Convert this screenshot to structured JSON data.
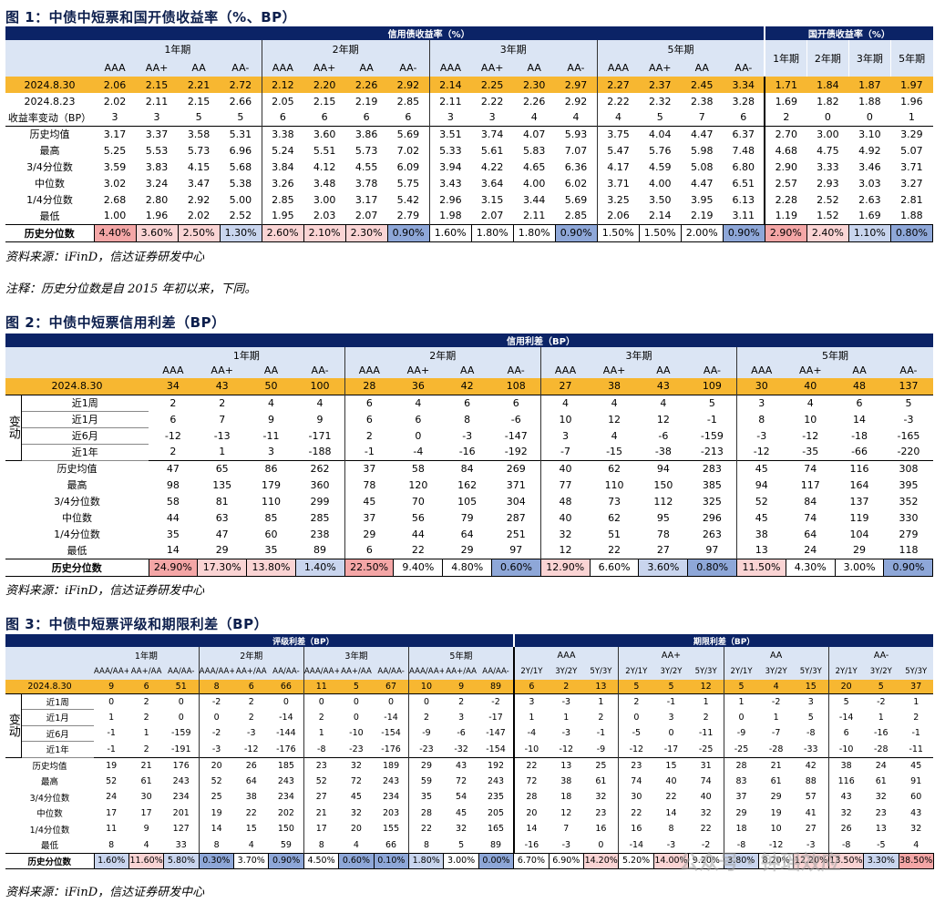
{
  "fig1": {
    "title": "图 1：中债中短票和国开债收益率（%、BP）",
    "group_credit": "信用债收益率（%）",
    "group_cdb": "国开债收益率（%）",
    "terms": [
      "1年期",
      "2年期",
      "3年期",
      "5年期"
    ],
    "ratings": [
      "AAA",
      "AA+",
      "AA",
      "AA-"
    ],
    "cdb_terms": [
      "1年期",
      "2年期",
      "3年期",
      "5年期"
    ],
    "rows": [
      {
        "label": "2024.8.30",
        "vals": [
          "2.06",
          "2.15",
          "2.21",
          "2.72",
          "2.12",
          "2.20",
          "2.26",
          "2.92",
          "2.14",
          "2.25",
          "2.30",
          "2.97",
          "2.27",
          "2.37",
          "2.45",
          "3.34",
          "1.71",
          "1.84",
          "1.87",
          "1.97"
        ]
      },
      {
        "label": "2024.8.23",
        "vals": [
          "2.02",
          "2.11",
          "2.15",
          "2.66",
          "2.05",
          "2.15",
          "2.19",
          "2.85",
          "2.11",
          "2.22",
          "2.26",
          "2.92",
          "2.22",
          "2.32",
          "2.38",
          "3.28",
          "1.69",
          "1.82",
          "1.88",
          "1.96"
        ]
      },
      {
        "label": "收益率变动（BP）",
        "vals": [
          "3",
          "3",
          "5",
          "5",
          "6",
          "6",
          "6",
          "6",
          "3",
          "3",
          "4",
          "4",
          "4",
          "5",
          "7",
          "6",
          "2",
          "0",
          "0",
          "1"
        ]
      },
      {
        "label": "历史均值",
        "vals": [
          "3.17",
          "3.37",
          "3.58",
          "5.31",
          "3.38",
          "3.60",
          "3.86",
          "5.69",
          "3.51",
          "3.74",
          "4.07",
          "5.93",
          "3.75",
          "4.04",
          "4.47",
          "6.37",
          "2.70",
          "3.00",
          "3.10",
          "3.29"
        ]
      },
      {
        "label": "最高",
        "vals": [
          "5.25",
          "5.53",
          "5.73",
          "6.96",
          "5.24",
          "5.51",
          "5.73",
          "7.02",
          "5.33",
          "5.61",
          "5.83",
          "7.07",
          "5.47",
          "5.76",
          "5.98",
          "7.48",
          "4.68",
          "4.75",
          "4.92",
          "5.07"
        ]
      },
      {
        "label": "3/4分位数",
        "vals": [
          "3.59",
          "3.83",
          "4.15",
          "5.68",
          "3.84",
          "4.12",
          "4.55",
          "6.09",
          "3.94",
          "4.22",
          "4.65",
          "6.36",
          "4.17",
          "4.59",
          "5.08",
          "6.80",
          "2.90",
          "3.33",
          "3.46",
          "3.71"
        ]
      },
      {
        "label": "中位数",
        "vals": [
          "3.02",
          "3.24",
          "3.47",
          "5.38",
          "3.26",
          "3.48",
          "3.78",
          "5.75",
          "3.43",
          "3.64",
          "4.00",
          "6.02",
          "3.71",
          "4.00",
          "4.47",
          "6.51",
          "2.57",
          "2.93",
          "3.03",
          "3.27"
        ]
      },
      {
        "label": "1/4分位数",
        "vals": [
          "2.68",
          "2.80",
          "2.92",
          "5.00",
          "2.85",
          "3.00",
          "3.17",
          "5.42",
          "2.96",
          "3.15",
          "3.44",
          "5.69",
          "3.25",
          "3.50",
          "3.95",
          "6.13",
          "2.28",
          "2.52",
          "2.63",
          "2.81"
        ]
      },
      {
        "label": "最低",
        "vals": [
          "1.00",
          "1.96",
          "2.02",
          "2.52",
          "1.95",
          "2.03",
          "2.07",
          "2.79",
          "1.98",
          "2.07",
          "2.11",
          "2.85",
          "2.06",
          "2.14",
          "2.19",
          "3.11",
          "1.19",
          "1.52",
          "1.69",
          "1.88"
        ]
      }
    ],
    "pct_label": "历史分位数",
    "pct": [
      "4.40%",
      "3.60%",
      "2.50%",
      "1.30%",
      "2.60%",
      "2.10%",
      "2.30%",
      "0.90%",
      "1.60%",
      "1.80%",
      "1.80%",
      "0.90%",
      "1.50%",
      "1.50%",
      "2.00%",
      "0.90%",
      "2.90%",
      "2.40%",
      "1.10%",
      "0.80%"
    ],
    "pct_colors": [
      "hot",
      "warm",
      "warm",
      "cool",
      "warm",
      "warm",
      "warm",
      "cold",
      "none",
      "none",
      "none",
      "cold",
      "none",
      "none",
      "none",
      "cold",
      "hot",
      "warm",
      "cool",
      "cold"
    ],
    "source": "资料来源：iFinD，信达证券研发中心"
  },
  "note": "注释：历史分位数是自 2015 年初以来，下同。",
  "fig2": {
    "title": "图 2：中债中短票信用利差（BP）",
    "group": "信用利差（BP）",
    "terms": [
      "1年期",
      "2年期",
      "3年期",
      "5年期"
    ],
    "ratings": [
      "AAA",
      "AA+",
      "AA",
      "AA-"
    ],
    "date_row": {
      "label": "2024.8.30",
      "vals": [
        "34",
        "43",
        "50",
        "100",
        "28",
        "36",
        "42",
        "108",
        "27",
        "38",
        "43",
        "109",
        "30",
        "40",
        "48",
        "137"
      ]
    },
    "change_label": "变动",
    "change_rows": [
      {
        "label": "近1周",
        "vals": [
          "2",
          "2",
          "4",
          "4",
          "6",
          "4",
          "6",
          "6",
          "4",
          "4",
          "4",
          "5",
          "3",
          "4",
          "6",
          "5"
        ]
      },
      {
        "label": "近1月",
        "vals": [
          "6",
          "7",
          "9",
          "9",
          "6",
          "6",
          "8",
          "-6",
          "10",
          "12",
          "12",
          "-1",
          "8",
          "10",
          "14",
          "-3"
        ]
      },
      {
        "label": "近6月",
        "vals": [
          "-12",
          "-13",
          "-11",
          "-171",
          "2",
          "0",
          "-3",
          "-147",
          "3",
          "4",
          "-6",
          "-159",
          "-3",
          "-12",
          "-18",
          "-165"
        ]
      },
      {
        "label": "近1年",
        "vals": [
          "2",
          "1",
          "3",
          "-188",
          "-1",
          "-4",
          "-16",
          "-192",
          "-7",
          "-15",
          "-38",
          "-213",
          "-12",
          "-35",
          "-66",
          "-220"
        ]
      }
    ],
    "stat_rows": [
      {
        "label": "历史均值",
        "vals": [
          "47",
          "65",
          "86",
          "262",
          "37",
          "58",
          "84",
          "269",
          "40",
          "62",
          "94",
          "283",
          "45",
          "74",
          "116",
          "308"
        ]
      },
      {
        "label": "最高",
        "vals": [
          "98",
          "135",
          "179",
          "360",
          "78",
          "120",
          "162",
          "371",
          "77",
          "110",
          "150",
          "385",
          "94",
          "117",
          "164",
          "395"
        ]
      },
      {
        "label": "3/4分位数",
        "vals": [
          "58",
          "81",
          "110",
          "299",
          "45",
          "70",
          "105",
          "304",
          "48",
          "73",
          "112",
          "325",
          "52",
          "84",
          "137",
          "352"
        ]
      },
      {
        "label": "中位数",
        "vals": [
          "44",
          "63",
          "85",
          "285",
          "37",
          "56",
          "79",
          "287",
          "40",
          "62",
          "95",
          "296",
          "45",
          "74",
          "119",
          "330"
        ]
      },
      {
        "label": "1/4分位数",
        "vals": [
          "35",
          "47",
          "60",
          "238",
          "29",
          "44",
          "64",
          "251",
          "32",
          "51",
          "78",
          "263",
          "38",
          "64",
          "104",
          "279"
        ]
      },
      {
        "label": "最低",
        "vals": [
          "14",
          "29",
          "35",
          "89",
          "6",
          "22",
          "29",
          "97",
          "12",
          "22",
          "27",
          "97",
          "13",
          "24",
          "29",
          "118"
        ]
      }
    ],
    "pct_label": "历史分位数",
    "pct": [
      "24.90%",
      "17.30%",
      "13.80%",
      "1.40%",
      "22.50%",
      "9.40%",
      "4.80%",
      "0.60%",
      "12.90%",
      "6.60%",
      "3.60%",
      "0.80%",
      "11.50%",
      "4.30%",
      "3.00%",
      "0.90%"
    ],
    "pct_colors": [
      "hot",
      "warm",
      "warm",
      "cool",
      "hot",
      "none",
      "none",
      "cold",
      "warm",
      "none",
      "cool",
      "cold",
      "warm",
      "none",
      "none",
      "cold"
    ],
    "source": "资料来源：iFinD，信达证券研发中心"
  },
  "fig3": {
    "title": "图 3：中债中短票评级和期限利差（BP）",
    "group_rating": "评级利差（BP）",
    "group_term": "期限利差（BP）",
    "rating_terms": [
      "1年期",
      "2年期",
      "3年期",
      "5年期"
    ],
    "rating_pairs": [
      "AAA/AA+",
      "AA+/AA",
      "AA/AA-"
    ],
    "term_ratings": [
      "AAA",
      "AA+",
      "AA",
      "AA-"
    ],
    "term_pairs": [
      "2Y/1Y",
      "3Y/2Y",
      "5Y/3Y"
    ],
    "date_row": {
      "label": "2024.8.30",
      "vals": [
        "9",
        "6",
        "51",
        "8",
        "6",
        "66",
        "11",
        "5",
        "67",
        "10",
        "9",
        "89",
        "6",
        "2",
        "13",
        "5",
        "5",
        "12",
        "5",
        "4",
        "15",
        "20",
        "5",
        "37"
      ]
    },
    "change_label": "变动",
    "change_rows": [
      {
        "label": "近1周",
        "vals": [
          "0",
          "2",
          "0",
          "-2",
          "2",
          "0",
          "0",
          "0",
          "0",
          "0",
          "2",
          "-2",
          "3",
          "-3",
          "1",
          "2",
          "-1",
          "1",
          "1",
          "-2",
          "3",
          "5",
          "-2",
          "1"
        ]
      },
      {
        "label": "近1月",
        "vals": [
          "1",
          "2",
          "0",
          "0",
          "2",
          "-14",
          "2",
          "0",
          "-14",
          "2",
          "3",
          "-17",
          "1",
          "1",
          "2",
          "0",
          "3",
          "2",
          "0",
          "1",
          "5",
          "-14",
          "1",
          "2"
        ]
      },
      {
        "label": "近6月",
        "vals": [
          "-1",
          "1",
          "-159",
          "-2",
          "-3",
          "-144",
          "1",
          "-10",
          "-154",
          "-9",
          "-6",
          "-147",
          "-4",
          "-3",
          "-1",
          "-5",
          "0",
          "-11",
          "-9",
          "-7",
          "-8",
          "6",
          "-16",
          "-1"
        ]
      },
      {
        "label": "近1年",
        "vals": [
          "-1",
          "2",
          "-191",
          "-3",
          "-12",
          "-176",
          "-8",
          "-23",
          "-176",
          "-23",
          "-32",
          "-154",
          "-10",
          "-12",
          "-9",
          "-12",
          "-17",
          "-25",
          "-25",
          "-28",
          "-33",
          "-10",
          "-28",
          "-11"
        ]
      }
    ],
    "stat_rows": [
      {
        "label": "历史均值",
        "vals": [
          "19",
          "21",
          "176",
          "20",
          "26",
          "185",
          "23",
          "32",
          "189",
          "29",
          "43",
          "192",
          "22",
          "13",
          "25",
          "23",
          "15",
          "31",
          "28",
          "21",
          "42",
          "38",
          "24",
          "45"
        ]
      },
      {
        "label": "最高",
        "vals": [
          "52",
          "61",
          "243",
          "52",
          "64",
          "243",
          "52",
          "72",
          "243",
          "59",
          "72",
          "243",
          "72",
          "38",
          "61",
          "74",
          "40",
          "74",
          "83",
          "61",
          "88",
          "116",
          "61",
          "91"
        ]
      },
      {
        "label": "3/4分位数",
        "vals": [
          "24",
          "30",
          "234",
          "25",
          "38",
          "234",
          "27",
          "45",
          "234",
          "35",
          "54",
          "235",
          "28",
          "18",
          "32",
          "30",
          "22",
          "40",
          "37",
          "29",
          "57",
          "43",
          "32",
          "60"
        ]
      },
      {
        "label": "中位数",
        "vals": [
          "17",
          "17",
          "201",
          "19",
          "22",
          "202",
          "21",
          "32",
          "203",
          "28",
          "45",
          "205",
          "20",
          "12",
          "23",
          "22",
          "14",
          "32",
          "29",
          "19",
          "41",
          "32",
          "23",
          "43"
        ]
      },
      {
        "label": "1/4分位数",
        "vals": [
          "11",
          "9",
          "127",
          "14",
          "15",
          "150",
          "17",
          "20",
          "155",
          "22",
          "32",
          "165",
          "14",
          "7",
          "16",
          "16",
          "8",
          "22",
          "18",
          "10",
          "27",
          "26",
          "13",
          "32"
        ]
      },
      {
        "label": "最低",
        "vals": [
          "8",
          "4",
          "33",
          "8",
          "4",
          "59",
          "8",
          "4",
          "66",
          "8",
          "5",
          "89",
          "-16",
          "-3",
          "0",
          "-14",
          "-3",
          "-2",
          "-8",
          "-12",
          "-3",
          "-8",
          "-5",
          "4"
        ]
      }
    ],
    "pct_label": "历史分位数",
    "pct": [
      "1.60%",
      "11.60%",
      "5.80%",
      "0.30%",
      "3.70%",
      "0.90%",
      "4.50%",
      "0.60%",
      "0.10%",
      "1.80%",
      "3.00%",
      "0.00%",
      "6.70%",
      "6.90%",
      "14.20%",
      "5.20%",
      "14.00%",
      "9.20%",
      "3.80%",
      "8.20%",
      "12.20%",
      "13.50%",
      "3.30%",
      "38.50%"
    ],
    "pct_colors": [
      "cool",
      "warm",
      "cool",
      "cold",
      "none",
      "cold",
      "none",
      "cold",
      "cold",
      "cool",
      "none",
      "cold",
      "none",
      "none",
      "warm",
      "none",
      "warm",
      "none",
      "cool",
      "none",
      "warm",
      "warm",
      "cool",
      "hot"
    ],
    "watermark": "公众号 · 钟瑶效应",
    "source": "资料来源：iFinD，信达证券研发中心"
  }
}
